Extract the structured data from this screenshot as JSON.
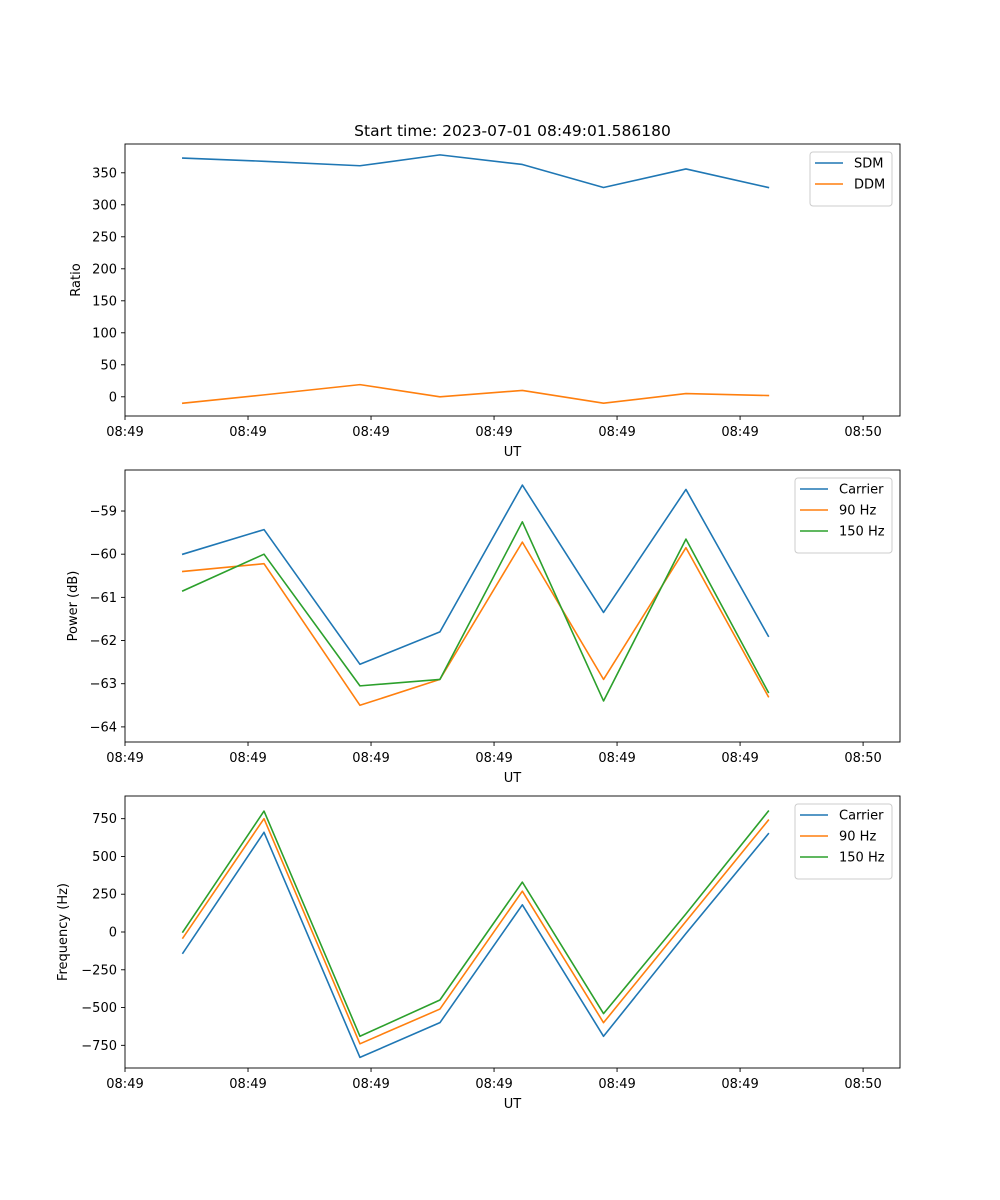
{
  "chart_data": [
    {
      "type": "line",
      "title": "Start time: 2023-07-01 08:49:01.586180",
      "xlabel": "UT",
      "ylabel": "Ratio",
      "ylim": [
        -30,
        395
      ],
      "xlim": [
        -0.15,
        6.15
      ],
      "x_tick_positions": [
        -0.15,
        0.85,
        1.85,
        2.85,
        3.85,
        4.85,
        5.85
      ],
      "x_tick_labels": [
        "08:49",
        "08:49",
        "08:49",
        "08:49",
        "08:49",
        "08:49",
        "08:50"
      ],
      "y_ticks": [
        0,
        50,
        100,
        150,
        200,
        250,
        300,
        350
      ],
      "y_tick_labels": [
        "0",
        "50",
        "100",
        "150",
        "200",
        "250",
        "300",
        "350"
      ],
      "legend_position": "upper right",
      "x": [
        0.32,
        0.98,
        1.76,
        2.41,
        3.08,
        3.74,
        4.41,
        5.08
      ],
      "series": [
        {
          "name": "SDM",
          "color": "#1f77b4",
          "values": [
            373,
            368,
            361,
            378,
            363,
            327,
            356,
            327
          ]
        },
        {
          "name": "DDM",
          "color": "#ff7f0e",
          "values": [
            -10,
            3,
            19,
            0,
            10,
            -10,
            5,
            2
          ]
        }
      ]
    },
    {
      "type": "line",
      "title": "",
      "xlabel": "UT",
      "ylabel": "Power (dB)",
      "ylim": [
        -64.35,
        -58.05
      ],
      "xlim": [
        -0.15,
        6.15
      ],
      "x_tick_positions": [
        -0.15,
        0.85,
        1.85,
        2.85,
        3.85,
        4.85,
        5.85
      ],
      "x_tick_labels": [
        "08:49",
        "08:49",
        "08:49",
        "08:49",
        "08:49",
        "08:49",
        "08:50"
      ],
      "y_ticks": [
        -64,
        -63,
        -62,
        -61,
        -60,
        -59
      ],
      "y_tick_labels": [
        "−64",
        "−63",
        "−62",
        "−61",
        "−60",
        "−59"
      ],
      "legend_position": "upper right",
      "x": [
        0.32,
        0.98,
        1.76,
        2.41,
        3.08,
        3.74,
        4.41,
        5.08
      ],
      "series": [
        {
          "name": "Carrier",
          "color": "#1f77b4",
          "values": [
            -60.0,
            -59.43,
            -62.55,
            -61.8,
            -58.4,
            -61.35,
            -58.5,
            -61.9
          ]
        },
        {
          "name": "90 Hz",
          "color": "#ff7f0e",
          "values": [
            -60.4,
            -60.22,
            -63.5,
            -62.9,
            -59.72,
            -62.9,
            -59.85,
            -63.3
          ]
        },
        {
          "name": "150 Hz",
          "color": "#2ca02c",
          "values": [
            -60.85,
            -60.0,
            -63.05,
            -62.9,
            -59.25,
            -63.4,
            -59.65,
            -63.2
          ]
        }
      ]
    },
    {
      "type": "line",
      "title": "",
      "xlabel": "UT",
      "ylabel": "Frequency (Hz)",
      "ylim": [
        -900,
        900
      ],
      "xlim": [
        -0.15,
        6.15
      ],
      "x_tick_positions": [
        -0.15,
        0.85,
        1.85,
        2.85,
        3.85,
        4.85,
        5.85
      ],
      "x_tick_labels": [
        "08:49",
        "08:49",
        "08:49",
        "08:49",
        "08:49",
        "08:49",
        "08:50"
      ],
      "y_ticks": [
        -750,
        -500,
        -250,
        0,
        250,
        500,
        750
      ],
      "y_tick_labels": [
        "−750",
        "−500",
        "−250",
        "0",
        "250",
        "500",
        "750"
      ],
      "legend_position": "upper right",
      "x": [
        0.32,
        0.98,
        1.76,
        2.41,
        3.08,
        3.74,
        4.41,
        5.08
      ],
      "series": [
        {
          "name": "Carrier",
          "color": "#1f77b4",
          "values": [
            -140,
            660,
            -830,
            -600,
            180,
            -690,
            -10,
            650
          ]
        },
        {
          "name": "90 Hz",
          "color": "#ff7f0e",
          "values": [
            -40,
            750,
            -740,
            -510,
            270,
            -600,
            70,
            740
          ]
        },
        {
          "name": "150 Hz",
          "color": "#2ca02c",
          "values": [
            0,
            800,
            -690,
            -450,
            330,
            -540,
            120,
            800
          ]
        }
      ]
    }
  ]
}
